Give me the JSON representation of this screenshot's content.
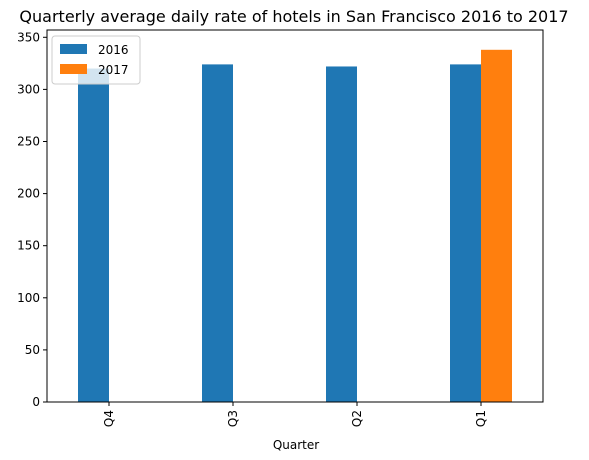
{
  "chart_data": {
    "type": "bar",
    "title": "Quarterly average daily rate of hotels in San Francisco 2016 to 2017",
    "xlabel": "Quarter",
    "ylabel": "",
    "categories": [
      "Q4",
      "Q3",
      "Q2",
      "Q1"
    ],
    "series": [
      {
        "name": "2016",
        "color": "#1f77b4",
        "values": [
          320,
          324,
          322,
          324
        ]
      },
      {
        "name": "2017",
        "color": "#ff7f0e",
        "values": [
          null,
          null,
          null,
          338
        ]
      }
    ],
    "ylim": [
      0,
      357
    ],
    "yticks": [
      0,
      50,
      100,
      150,
      200,
      250,
      300,
      350
    ],
    "grid": false,
    "legend": "top-left"
  }
}
